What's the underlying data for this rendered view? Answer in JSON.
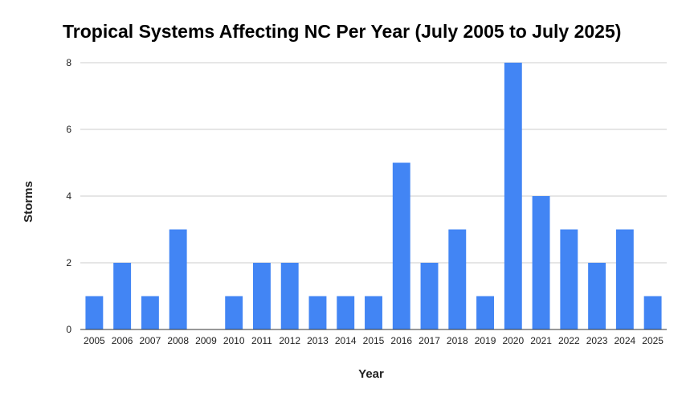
{
  "chart_data": {
    "type": "bar",
    "title": "Tropical Systems Affecting NC Per Year (July 2005 to July 2025)",
    "xlabel": "Year",
    "ylabel": "Storms",
    "categories": [
      "2005",
      "2006",
      "2007",
      "2008",
      "2009",
      "2010",
      "2011",
      "2012",
      "2013",
      "2014",
      "2015",
      "2016",
      "2017",
      "2018",
      "2019",
      "2020",
      "2021",
      "2022",
      "2023",
      "2024",
      "2025"
    ],
    "values": [
      1,
      2,
      1,
      3,
      0,
      1,
      2,
      2,
      1,
      1,
      1,
      5,
      2,
      3,
      1,
      8,
      4,
      3,
      2,
      3,
      1
    ],
    "ylim": [
      0,
      8
    ],
    "yticks": [
      "0",
      "2",
      "4",
      "6",
      "8"
    ],
    "grid": true,
    "legend": "none",
    "bar_color": "#4285f4",
    "grid_color": "#cccccc",
    "axis_color": "#333333"
  }
}
